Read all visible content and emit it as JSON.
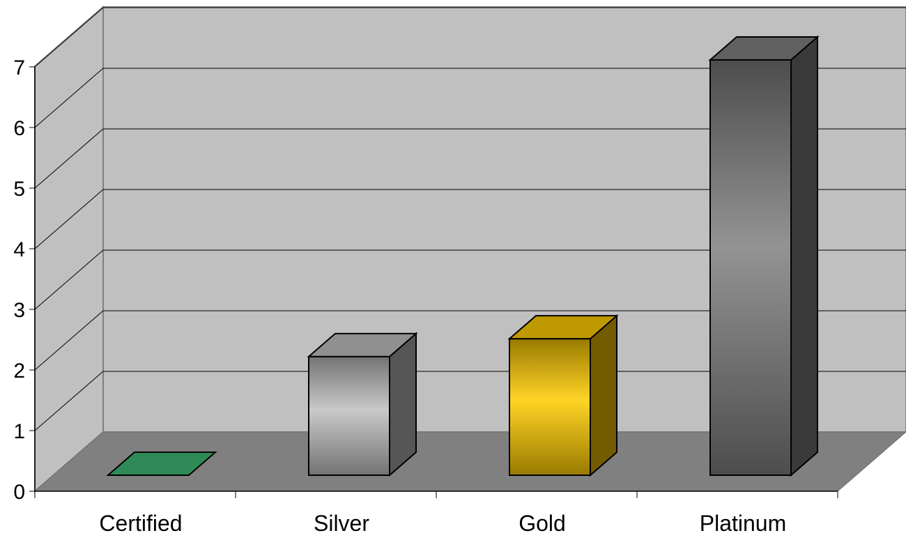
{
  "chart_data": {
    "type": "bar",
    "style": "3d-column",
    "title": "",
    "xlabel": "",
    "ylabel": "",
    "categories": [
      "Certified",
      "Silver",
      "Gold",
      "Platinum"
    ],
    "values": [
      0,
      2,
      2.3,
      7
    ],
    "ylim": [
      0,
      7
    ],
    "yticks": [
      "0",
      "1",
      "2",
      "3",
      "4",
      "5",
      "6",
      "7"
    ],
    "grid": true,
    "legend": "none",
    "colors": {
      "wall": "#c0c0c0",
      "floor": "#808080",
      "gridline": "#000000",
      "bars": [
        "#2e8b57",
        "#c0c0c0",
        "#ffcc00",
        "#808080"
      ]
    }
  }
}
